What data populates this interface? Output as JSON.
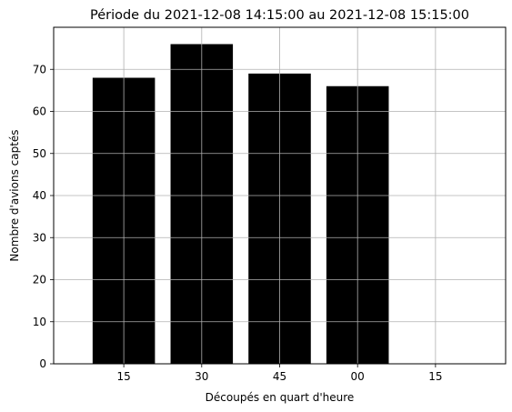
{
  "chart_data": {
    "type": "bar",
    "title": "Période du 2021-12-08 14:15:00 au 2021-12-08 15:15:00",
    "xlabel": "Découpés en quart d'heure",
    "ylabel": "Nombre d'avions captés",
    "categories": [
      "15",
      "30",
      "45",
      "00",
      "15"
    ],
    "values": [
      68,
      76,
      69,
      66,
      0
    ],
    "ylim": [
      0,
      80
    ],
    "yticks": [
      0,
      10,
      20,
      30,
      40,
      50,
      60,
      70
    ],
    "grid": true,
    "bar_color": "#000000",
    "grid_color": "#b0b0b0"
  }
}
